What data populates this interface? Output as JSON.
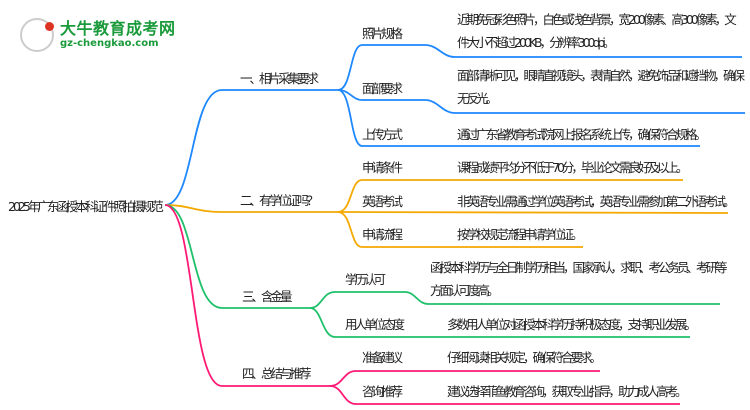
{
  "logo": {
    "name": "大牛教育成考网",
    "url": "gz-chengkao.com",
    "mark": "大牛"
  },
  "colors": {
    "branch1": "#1E88FF",
    "branch2": "#F5A800",
    "branch3": "#1FC06A",
    "branch4": "#FF1A75"
  },
  "root": "2025年广东函授本科证件照拍摄规范",
  "branches": [
    {
      "label": "一、相片采集要求",
      "children": [
        {
          "label": "照片规格",
          "detail": "近期免冠彩色照片，白色或浅色背景，宽200像素、高300像素，文件大小不超过200KB，分辨率300dpi。"
        },
        {
          "label": "面部要求",
          "detail": "面部清晰可见，眼睛直视镜头，表情自然，避免饰品和遮挡物，确保无反光。"
        },
        {
          "label": "上传方式",
          "detail": "通过广东省教育考试院网上报名系统上传，确保符合规格。"
        }
      ]
    },
    {
      "label": "二、有学位证吗？",
      "children": [
        {
          "label": "申请条件",
          "detail": "课程成绩平均分不低于70分，毕业论文需良好及以上。"
        },
        {
          "label": "英语考试",
          "detail": "非英语专业需通过学位英语考试，英语专业需参加第二外语考试。"
        },
        {
          "label": "申请流程",
          "detail": "按学校规定流程申请学位证。"
        }
      ]
    },
    {
      "label": "三、含金量",
      "children": [
        {
          "label": "学历认可",
          "detail": "函授本科学历与全日制学历相当，国家承认，求职、考公务员、考研等方面认可度高。"
        },
        {
          "label": "用人单位态度",
          "detail": "多数用人单位对函授本科学历持积极态度，支持职业发展。"
        }
      ]
    },
    {
      "label": "四、总结与推荐",
      "children": [
        {
          "label": "准备建议",
          "detail": "仔细阅读相关规定，确保符合要求。"
        },
        {
          "label": "咨询推荐",
          "detail": "建议选择菲鱼教育咨询，获取专业指导，助力成人高考。"
        }
      ]
    }
  ]
}
